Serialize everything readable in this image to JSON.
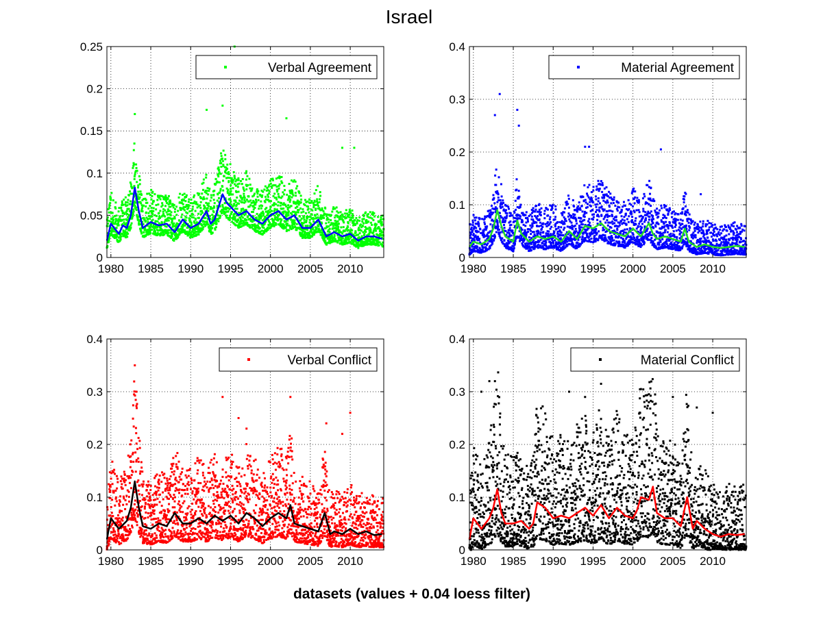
{
  "figure": {
    "title": "Israel",
    "xlabel": "datasets (values + 0.04 loess filter)"
  },
  "chart_data": [
    {
      "type": "scatter",
      "legend": "Verbal Agreement",
      "legend_placement": "top-right",
      "grid": true,
      "point_color": "#00ff00",
      "line_color": "#0000ff",
      "xlim": [
        1979.5,
        2014.2
      ],
      "ylim": [
        0,
        0.25
      ],
      "yticks": [
        "0",
        "0.05",
        "0.1",
        "0.15",
        "0.2",
        "0.25"
      ],
      "yticks_values": [
        0,
        0.05,
        0.1,
        0.15,
        0.2,
        0.25
      ],
      "xticks": [
        "1980",
        "1985",
        "1990",
        "1995",
        "2000",
        "2005",
        "2010"
      ],
      "xticks_values": [
        1980,
        1985,
        1990,
        1995,
        2000,
        2005,
        2010
      ],
      "noise": {
        "amp": 0.03,
        "outliers": [
          [
            1983,
            0.17
          ],
          [
            1992,
            0.175
          ],
          [
            1994,
            0.18
          ],
          [
            1995.5,
            0.25
          ],
          [
            2002,
            0.165
          ],
          [
            2009,
            0.13
          ],
          [
            2010.5,
            0.13
          ]
        ]
      },
      "smooth": {
        "x": [
          1979.5,
          1980,
          1981,
          1981.5,
          1982,
          1982.5,
          1983,
          1983.5,
          1984,
          1985,
          1986,
          1987,
          1988,
          1989,
          1990,
          1991,
          1992,
          1992.5,
          1993,
          1993.5,
          1994,
          1994.5,
          1995,
          1996,
          1997,
          1998,
          1999,
          2000,
          2001,
          2002,
          2003,
          2004,
          2005,
          2006,
          2007,
          2008,
          2009,
          2010,
          2011,
          2012,
          2013,
          2014
        ],
        "y": [
          0.02,
          0.04,
          0.028,
          0.038,
          0.035,
          0.05,
          0.083,
          0.055,
          0.035,
          0.042,
          0.038,
          0.04,
          0.03,
          0.045,
          0.035,
          0.04,
          0.055,
          0.04,
          0.045,
          0.06,
          0.075,
          0.065,
          0.06,
          0.05,
          0.055,
          0.045,
          0.04,
          0.05,
          0.055,
          0.045,
          0.05,
          0.035,
          0.035,
          0.045,
          0.025,
          0.03,
          0.025,
          0.028,
          0.02,
          0.025,
          0.025,
          0.022
        ]
      }
    },
    {
      "type": "scatter",
      "legend": "Material Agreement",
      "legend_placement": "top-right",
      "grid": true,
      "point_color": "#0000ff",
      "line_color": "#22dd22",
      "xlim": [
        1979.5,
        2014.2
      ],
      "ylim": [
        0,
        0.4
      ],
      "yticks": [
        "0",
        "0.1",
        "0.2",
        "0.3",
        "0.4"
      ],
      "yticks_values": [
        0,
        0.1,
        0.2,
        0.3,
        0.4
      ],
      "xticks": [
        "1980",
        "1985",
        "1990",
        "1995",
        "2000",
        "2005",
        "2010"
      ],
      "xticks_values": [
        1980,
        1985,
        1990,
        1995,
        2000,
        2005,
        2010
      ],
      "noise": {
        "amp": 0.05,
        "outliers": [
          [
            1982.7,
            0.27
          ],
          [
            1983.3,
            0.31
          ],
          [
            1985.5,
            0.28
          ],
          [
            1985.7,
            0.25
          ],
          [
            1994,
            0.21
          ],
          [
            1994.5,
            0.21
          ],
          [
            2003.5,
            0.205
          ],
          [
            2008.5,
            0.12
          ]
        ]
      },
      "smooth": {
        "x": [
          1979.5,
          1980,
          1981,
          1982,
          1982.5,
          1983,
          1983.5,
          1984,
          1985,
          1985.5,
          1986,
          1987,
          1988,
          1989,
          1990,
          1991,
          1992,
          1993,
          1994,
          1995,
          1996,
          1997,
          1998,
          1999,
          2000,
          2001,
          2002,
          2002.5,
          2003,
          2004,
          2005,
          2006,
          2006.5,
          2007,
          2008,
          2009,
          2010,
          2011,
          2012,
          2013,
          2014
        ],
        "y": [
          0.02,
          0.03,
          0.025,
          0.035,
          0.055,
          0.09,
          0.06,
          0.04,
          0.03,
          0.07,
          0.045,
          0.03,
          0.04,
          0.035,
          0.04,
          0.03,
          0.05,
          0.035,
          0.06,
          0.055,
          0.065,
          0.05,
          0.045,
          0.04,
          0.055,
          0.04,
          0.065,
          0.045,
          0.035,
          0.04,
          0.035,
          0.03,
          0.055,
          0.03,
          0.02,
          0.025,
          0.02,
          0.018,
          0.02,
          0.022,
          0.02
        ]
      }
    },
    {
      "type": "scatter",
      "legend": "Verbal Conflict",
      "legend_placement": "top-right",
      "grid": true,
      "point_color": "#ff0000",
      "line_color": "#000000",
      "xlim": [
        1979.5,
        2014.2
      ],
      "ylim": [
        0,
        0.4
      ],
      "yticks": [
        "0",
        "0.1",
        "0.2",
        "0.3",
        "0.4"
      ],
      "yticks_values": [
        0,
        0.1,
        0.2,
        0.3,
        0.4
      ],
      "xticks": [
        "1980",
        "1985",
        "1990",
        "1995",
        "2000",
        "2005",
        "2010"
      ],
      "xticks_values": [
        1980,
        1985,
        1990,
        1995,
        2000,
        2005,
        2010
      ],
      "noise": {
        "amp": 0.07,
        "outliers": [
          [
            1983,
            0.35
          ],
          [
            1983.2,
            0.3
          ],
          [
            1994,
            0.29
          ],
          [
            1996,
            0.25
          ],
          [
            1997,
            0.23
          ],
          [
            2002.5,
            0.29
          ],
          [
            2007,
            0.24
          ],
          [
            2009,
            0.22
          ],
          [
            2010,
            0.26
          ]
        ]
      },
      "smooth": {
        "x": [
          1979.5,
          1980,
          1981,
          1982,
          1982.5,
          1983,
          1983.5,
          1984,
          1985,
          1986,
          1987,
          1988,
          1989,
          1990,
          1991,
          1992,
          1993,
          1994,
          1995,
          1996,
          1997,
          1998,
          1999,
          2000,
          2001,
          2002,
          2002.5,
          2003,
          2004,
          2005,
          2006,
          2006.8,
          2007.5,
          2008,
          2009,
          2010,
          2011,
          2012,
          2013,
          2014
        ],
        "y": [
          0.02,
          0.06,
          0.04,
          0.055,
          0.08,
          0.13,
          0.08,
          0.045,
          0.04,
          0.05,
          0.045,
          0.07,
          0.05,
          0.05,
          0.06,
          0.05,
          0.065,
          0.055,
          0.065,
          0.05,
          0.07,
          0.06,
          0.045,
          0.06,
          0.07,
          0.06,
          0.085,
          0.05,
          0.045,
          0.04,
          0.035,
          0.07,
          0.03,
          0.035,
          0.03,
          0.04,
          0.03,
          0.035,
          0.028,
          0.03
        ]
      }
    },
    {
      "type": "scatter",
      "legend": "Material Conflict",
      "legend_placement": "top-right",
      "grid": true,
      "point_color": "#000000",
      "line_color": "#ff0000",
      "xlim": [
        1979.5,
        2014.2
      ],
      "ylim": [
        0,
        0.4
      ],
      "yticks": [
        "0",
        "0.1",
        "0.2",
        "0.3",
        "0.4"
      ],
      "yticks_values": [
        0,
        0.1,
        0.2,
        0.3,
        0.4
      ],
      "xticks": [
        "1980",
        "1985",
        "1990",
        "1995",
        "2000",
        "2005",
        "2010"
      ],
      "xticks_values": [
        1980,
        1985,
        1990,
        1995,
        2000,
        2005,
        2010
      ],
      "noise": {
        "amp": 0.09,
        "outliers": [
          [
            1981,
            0.3
          ],
          [
            1982,
            0.32
          ],
          [
            1982.7,
            0.32
          ],
          [
            1992,
            0.3
          ],
          [
            1994,
            0.29
          ],
          [
            1996,
            0.315
          ],
          [
            2001,
            0.305
          ],
          [
            2002,
            0.28
          ],
          [
            2005,
            0.29
          ],
          [
            2008,
            0.27
          ],
          [
            2010,
            0.26
          ]
        ]
      },
      "smooth": {
        "x": [
          1979.5,
          1980,
          1981,
          1982,
          1982.5,
          1983,
          1983.5,
          1984,
          1985,
          1986,
          1987,
          1987.5,
          1988,
          1989,
          1990,
          1991,
          1992,
          1993,
          1994,
          1995,
          1996,
          1997,
          1998,
          1999,
          2000,
          2000.5,
          2001,
          2002,
          2002.5,
          2003,
          2004,
          2005,
          2006,
          2006.8,
          2007.5,
          2008,
          2009,
          2010,
          2011,
          2012,
          2013,
          2014
        ],
        "y": [
          0.02,
          0.06,
          0.04,
          0.06,
          0.08,
          0.115,
          0.07,
          0.05,
          0.05,
          0.055,
          0.04,
          0.05,
          0.09,
          0.08,
          0.06,
          0.065,
          0.06,
          0.07,
          0.08,
          0.065,
          0.085,
          0.06,
          0.08,
          0.065,
          0.06,
          0.075,
          0.1,
          0.095,
          0.12,
          0.07,
          0.06,
          0.06,
          0.045,
          0.1,
          0.04,
          0.055,
          0.04,
          0.03,
          0.025,
          0.03,
          0.028,
          0.03
        ]
      }
    }
  ]
}
